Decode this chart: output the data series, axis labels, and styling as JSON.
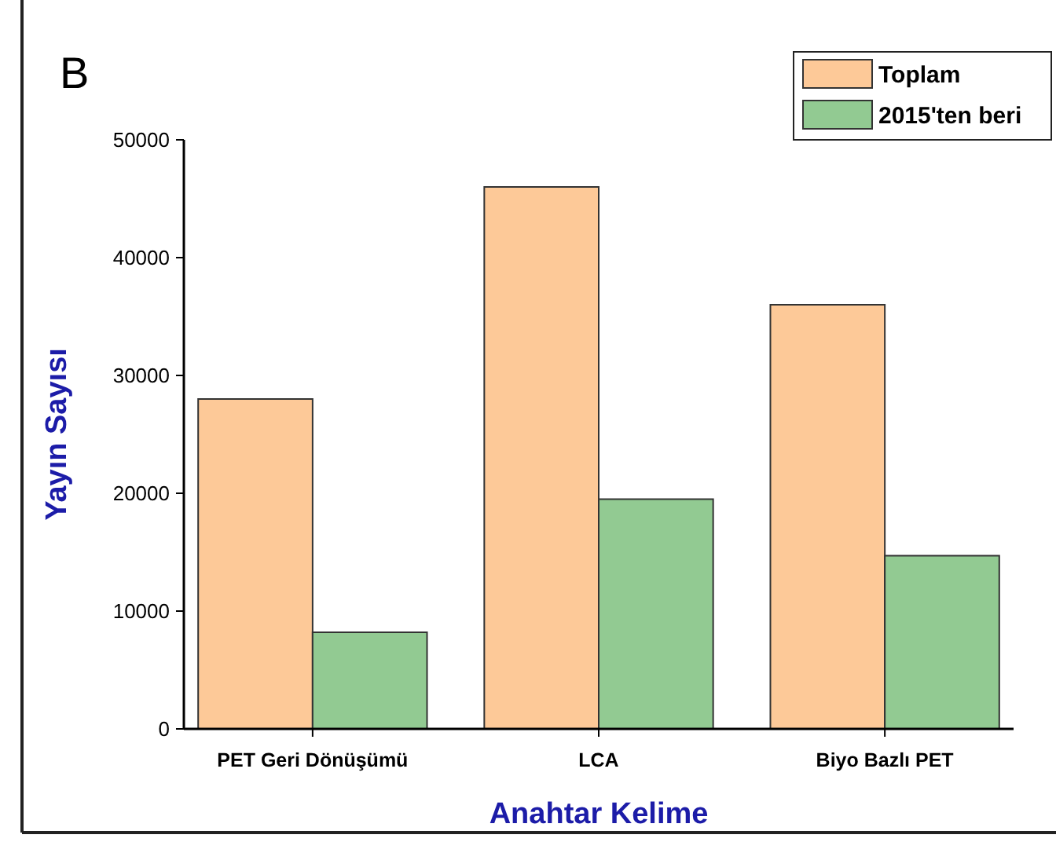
{
  "chart_data": {
    "type": "bar",
    "categories": [
      "PET Geri Dönüşümü",
      "LCA",
      "Biyo Bazlı PET"
    ],
    "series": [
      {
        "name": "Toplam",
        "color": "#fdc998",
        "values": [
          28000,
          46000,
          36000
        ]
      },
      {
        "name": "2015'ten beri",
        "color": "#92ca92",
        "values": [
          8200,
          19500,
          14700
        ]
      }
    ],
    "xlabel": "Anahtar Kelime",
    "ylabel": "Yayın Sayısı",
    "annotations": [
      "B"
    ],
    "ylim": [
      0,
      50000
    ],
    "yticks": [
      0,
      10000,
      20000,
      30000,
      40000,
      50000
    ],
    "grid": false,
    "legend": "top right"
  }
}
